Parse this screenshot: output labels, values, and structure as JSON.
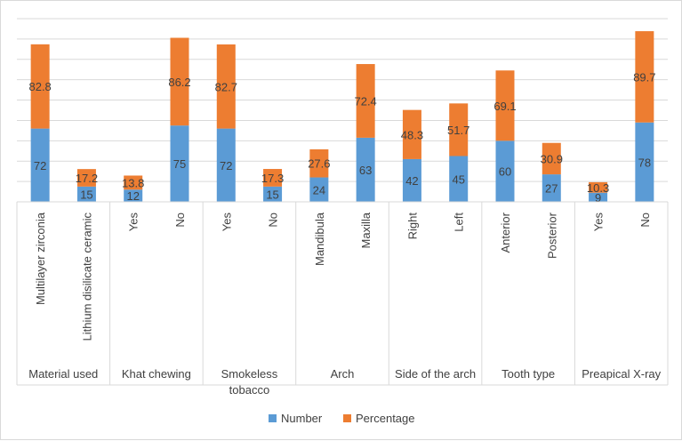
{
  "chart_data": {
    "type": "bar",
    "stacked": true,
    "grid": true,
    "legend_position": "bottom",
    "ylim": [
      0,
      180
    ],
    "groups": [
      {
        "label": "Material used",
        "categories": [
          "Multilayer zirconia",
          "Lithium disilicate ceramic"
        ]
      },
      {
        "label": "Khat chewing",
        "categories": [
          "Yes",
          "No"
        ]
      },
      {
        "label": "Smokeless tobacco",
        "categories": [
          "Yes",
          "No"
        ]
      },
      {
        "label": "Arch",
        "categories": [
          "Mandibula",
          "Maxilla"
        ]
      },
      {
        "label": "Side of the arch",
        "categories": [
          "Right",
          "Left"
        ]
      },
      {
        "label": "Tooth type",
        "categories": [
          "Anterior",
          "Posterior"
        ]
      },
      {
        "label": "Preapical X-ray",
        "categories": [
          "Yes",
          "No"
        ]
      }
    ],
    "series": [
      {
        "name": "Number",
        "color": "#5b9bd5",
        "values": [
          72,
          15,
          12,
          75,
          72,
          15,
          24,
          63,
          42,
          45,
          60,
          27,
          9,
          78
        ],
        "labels": [
          "72",
          "15",
          "12",
          "75",
          "72",
          "15",
          "24",
          "63",
          "42",
          "45",
          "60",
          "27",
          "9",
          "78"
        ]
      },
      {
        "name": "Percentage",
        "color": "#ed7d31",
        "values": [
          82.8,
          17.2,
          13.8,
          86.2,
          82.7,
          17.3,
          27.6,
          72.4,
          48.3,
          51.7,
          69.1,
          30.9,
          10.3,
          89.7
        ],
        "labels": [
          "82.8",
          "17.2",
          "13.8",
          "86.2",
          "82.7",
          "17.3",
          "27.6",
          "72.4",
          "48.3",
          "51.7",
          "69.1",
          "30.9",
          "10.3",
          "89.7"
        ]
      }
    ]
  }
}
